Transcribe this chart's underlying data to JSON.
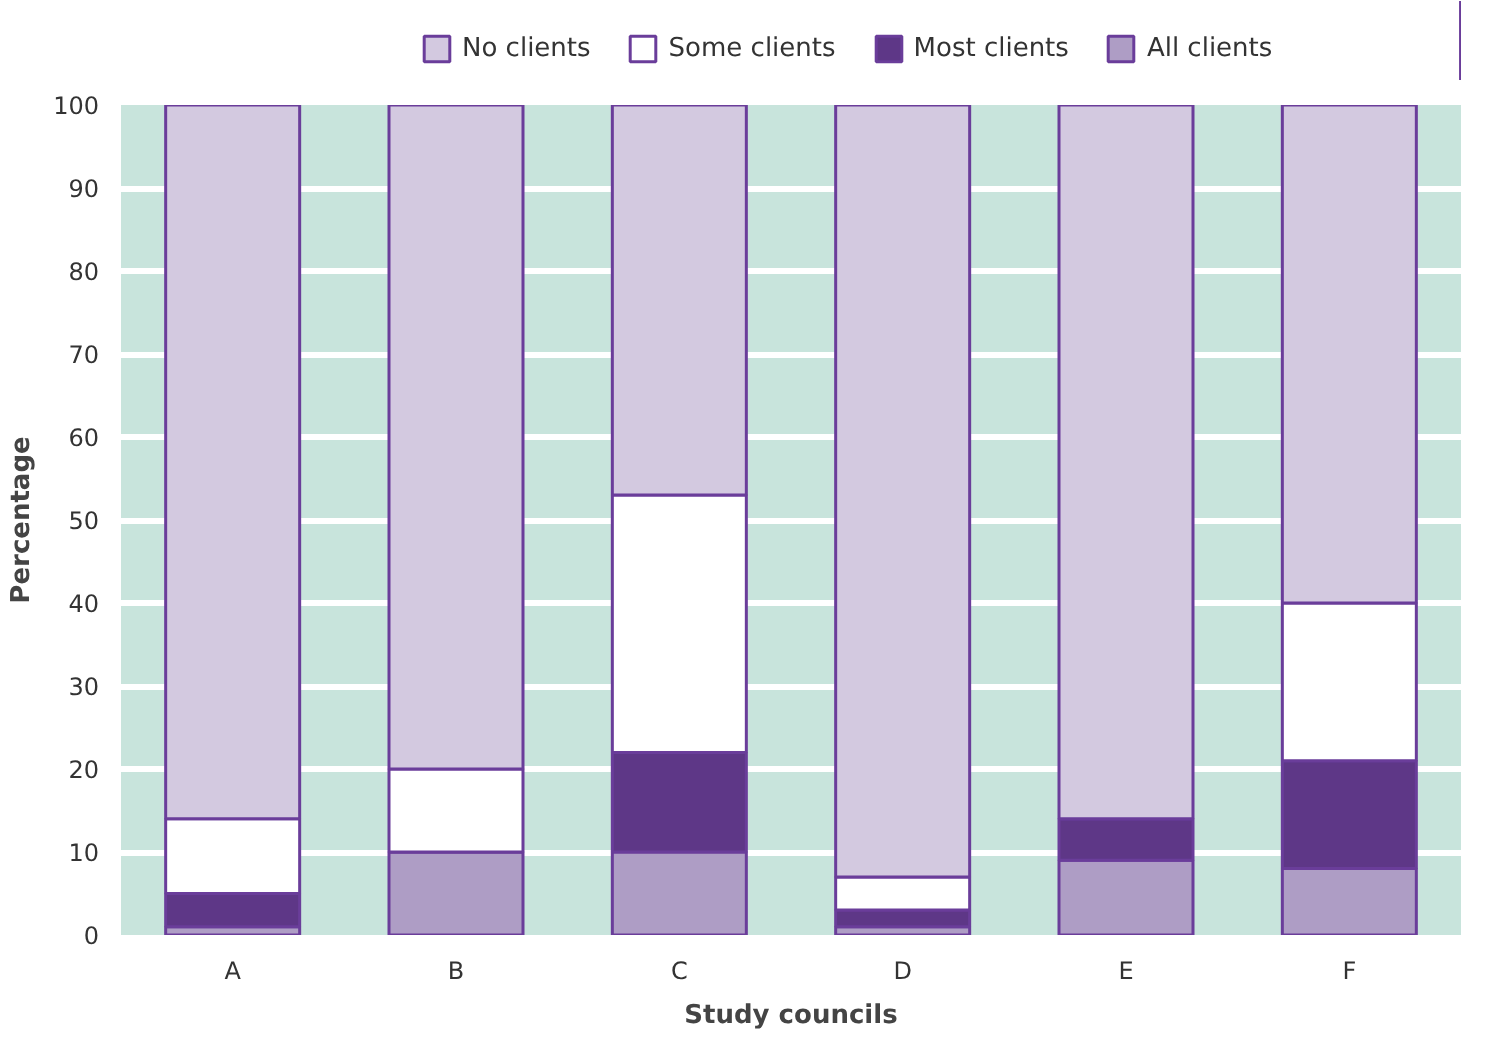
{
  "chart_data": {
    "type": "bar",
    "stacked": true,
    "xlabel": "Study councils",
    "ylabel": "Percentage",
    "categories": [
      "A",
      "B",
      "C",
      "D",
      "E",
      "F"
    ],
    "series": [
      {
        "name": "All clients",
        "color": "#ae9dc5",
        "values": [
          1,
          10,
          10,
          1,
          9,
          8
        ]
      },
      {
        "name": "Most clients",
        "color": "#5e3787",
        "values": [
          4,
          0,
          12,
          2,
          5,
          13
        ]
      },
      {
        "name": "Some clients",
        "color": "#ffffff",
        "values": [
          9,
          10,
          31,
          4,
          0,
          19
        ]
      },
      {
        "name": "No clients",
        "color": "#d3c9e0",
        "values": [
          86,
          80,
          47,
          93,
          86,
          60
        ]
      }
    ],
    "ylim": [
      0,
      100
    ],
    "yticks": [
      0,
      10,
      20,
      30,
      40,
      50,
      60,
      70,
      80,
      90,
      100
    ],
    "grid": "y",
    "legend": "top"
  }
}
